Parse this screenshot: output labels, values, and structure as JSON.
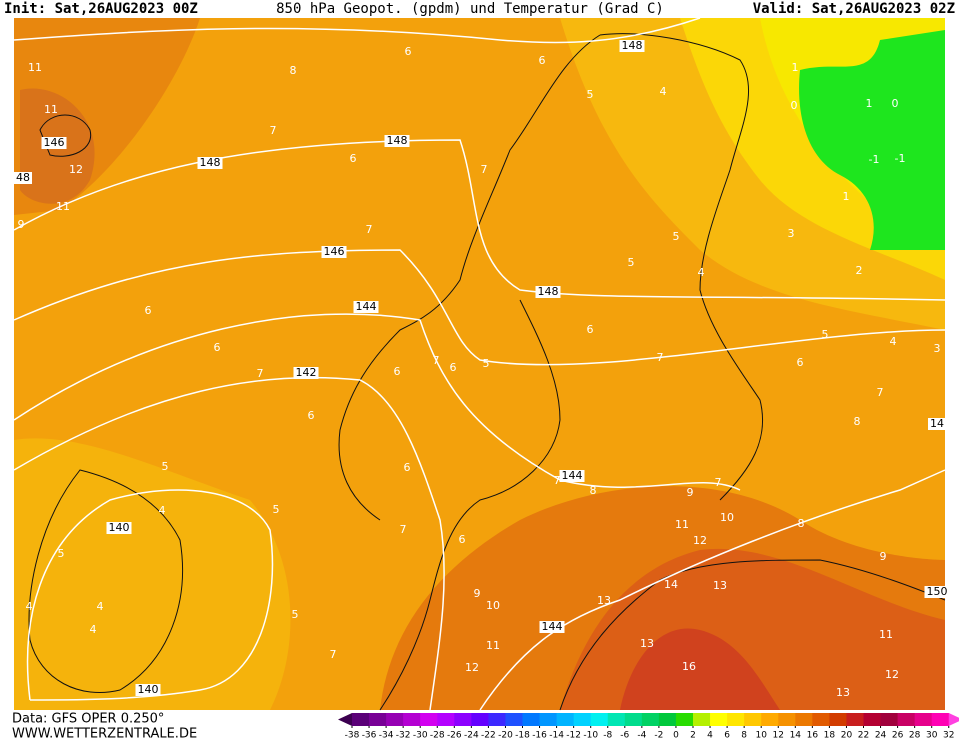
{
  "header": {
    "init": "Init: Sat,26AUG2023 00Z",
    "title": "850 hPa Geopot. (gpdm) und Temperatur (Grad C)",
    "valid": "Valid: Sat,26AUG2023 02Z"
  },
  "footer": {
    "data": "Data: GFS OPER 0.250°",
    "site": "WWW.WETTERZENTRALE.DE"
  },
  "colorbar": {
    "ticks": [
      -38,
      -36,
      -34,
      -32,
      -30,
      -28,
      -26,
      -24,
      -22,
      -20,
      -18,
      -16,
      -14,
      -12,
      -10,
      -8,
      -6,
      -4,
      -2,
      0,
      2,
      4,
      6,
      8,
      10,
      12,
      14,
      16,
      18,
      20,
      22,
      24,
      26,
      28,
      30,
      32
    ],
    "colors": [
      "#3c0050",
      "#5a0078",
      "#780096",
      "#9600b4",
      "#b400d2",
      "#d200f0",
      "#b400ff",
      "#8c00ff",
      "#6400ff",
      "#3c28ff",
      "#1e50ff",
      "#0078ff",
      "#0096ff",
      "#00b4ff",
      "#00d2ff",
      "#00f0f0",
      "#00e6b4",
      "#00dc8c",
      "#00d264",
      "#00c83c",
      "#28dc00",
      "#b4f000",
      "#ffff00",
      "#ffe600",
      "#ffc800",
      "#ffaa00",
      "#f59100",
      "#eb7800",
      "#e15a00",
      "#d23c00",
      "#c81e1e",
      "#b40032",
      "#a0003c",
      "#c80064",
      "#e6008c",
      "#ff00b4",
      "#ff40e0"
    ]
  },
  "contour_labels": {
    "geopotential": [
      "148",
      "148",
      "148",
      "146",
      "146",
      "144",
      "142",
      "148",
      "144",
      "144",
      "140",
      "140",
      "150",
      "14",
      "48"
    ],
    "temperature": [
      "11",
      "8",
      "6",
      "6",
      "7",
      "6",
      "7",
      "11",
      "12",
      "11",
      "9",
      "7",
      "6",
      "6",
      "7",
      "5",
      "4",
      "1",
      "0",
      "1",
      "0",
      "-1",
      "-1",
      "1",
      "3",
      "2",
      "5",
      "5",
      "4",
      "6",
      "5",
      "4",
      "3",
      "6",
      "7",
      "7",
      "8",
      "5",
      "7",
      "6",
      "6",
      "6",
      "5",
      "6",
      "7",
      "8",
      "9",
      "7",
      "11",
      "12",
      "10",
      "8",
      "9",
      "5",
      "7",
      "5",
      "6",
      "4",
      "4",
      "4",
      "4",
      "5",
      "9",
      "10",
      "14",
      "13",
      "13",
      "11",
      "13",
      "16",
      "11",
      "12",
      "7",
      "12",
      "13"
    ]
  }
}
